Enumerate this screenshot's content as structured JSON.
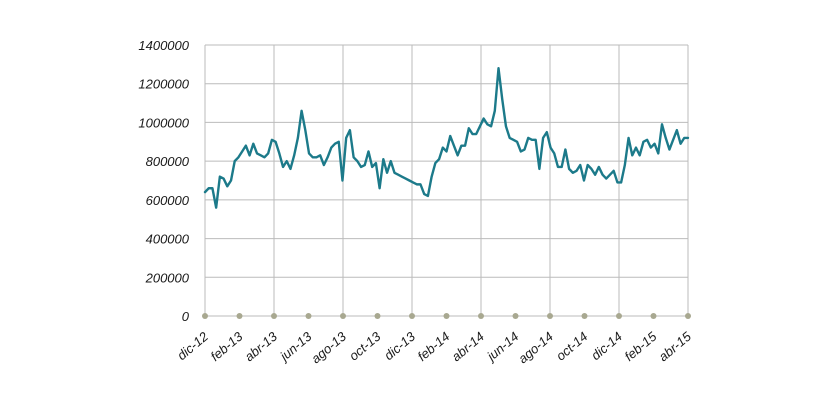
{
  "chart_data": {
    "type": "line",
    "title": "",
    "xlabel": "",
    "ylabel": "",
    "ylim": [
      0,
      1400000
    ],
    "y_ticks": [
      0,
      200000,
      400000,
      600000,
      800000,
      1000000,
      1200000,
      1400000
    ],
    "y_tick_labels": [
      "0",
      "200000",
      "400000",
      "600000",
      "800000",
      "1000000",
      "1200000",
      "1400000"
    ],
    "x_tick_labels": [
      "dic-12",
      "feb-13",
      "abr-13",
      "jun-13",
      "ago-13",
      "oct-13",
      "dic-13",
      "feb-14",
      "abr-14",
      "jun-14",
      "ago-14",
      "oct-14",
      "dic-14",
      "feb-15",
      "abr-15"
    ],
    "grid": true,
    "series_color": "#1c7a8a",
    "grid_color": "#bbbbbb",
    "marker_color": "#a8a890",
    "series": [
      {
        "values": [
          640000,
          660000,
          660000,
          560000,
          720000,
          710000,
          670000,
          700000,
          800000,
          820000,
          850000,
          880000,
          830000,
          890000,
          840000,
          830000,
          820000,
          840000,
          910000,
          900000,
          840000,
          770000,
          800000,
          760000,
          830000,
          920000,
          1060000,
          960000,
          840000,
          820000,
          820000,
          830000,
          780000,
          820000,
          870000,
          890000,
          900000,
          700000,
          920000,
          960000,
          820000,
          800000,
          770000,
          780000,
          850000,
          770000,
          790000,
          660000,
          810000,
          740000,
          800000,
          740000,
          730000,
          720000,
          710000,
          700000,
          690000,
          680000,
          680000,
          630000,
          620000,
          720000,
          790000,
          810000,
          870000,
          850000,
          930000,
          880000,
          830000,
          880000,
          880000,
          970000,
          940000,
          940000,
          980000,
          1020000,
          990000,
          980000,
          1060000,
          1280000,
          1120000,
          980000,
          920000,
          910000,
          900000,
          850000,
          860000,
          920000,
          910000,
          910000,
          760000,
          920000,
          950000,
          870000,
          840000,
          770000,
          770000,
          860000,
          760000,
          740000,
          750000,
          780000,
          700000,
          780000,
          760000,
          730000,
          770000,
          730000,
          710000,
          730000,
          750000,
          690000,
          690000,
          780000,
          920000,
          830000,
          870000,
          830000,
          900000,
          910000,
          870000,
          890000,
          840000,
          990000,
          920000,
          860000,
          910000,
          960000,
          890000,
          920000,
          920000
        ]
      }
    ]
  }
}
